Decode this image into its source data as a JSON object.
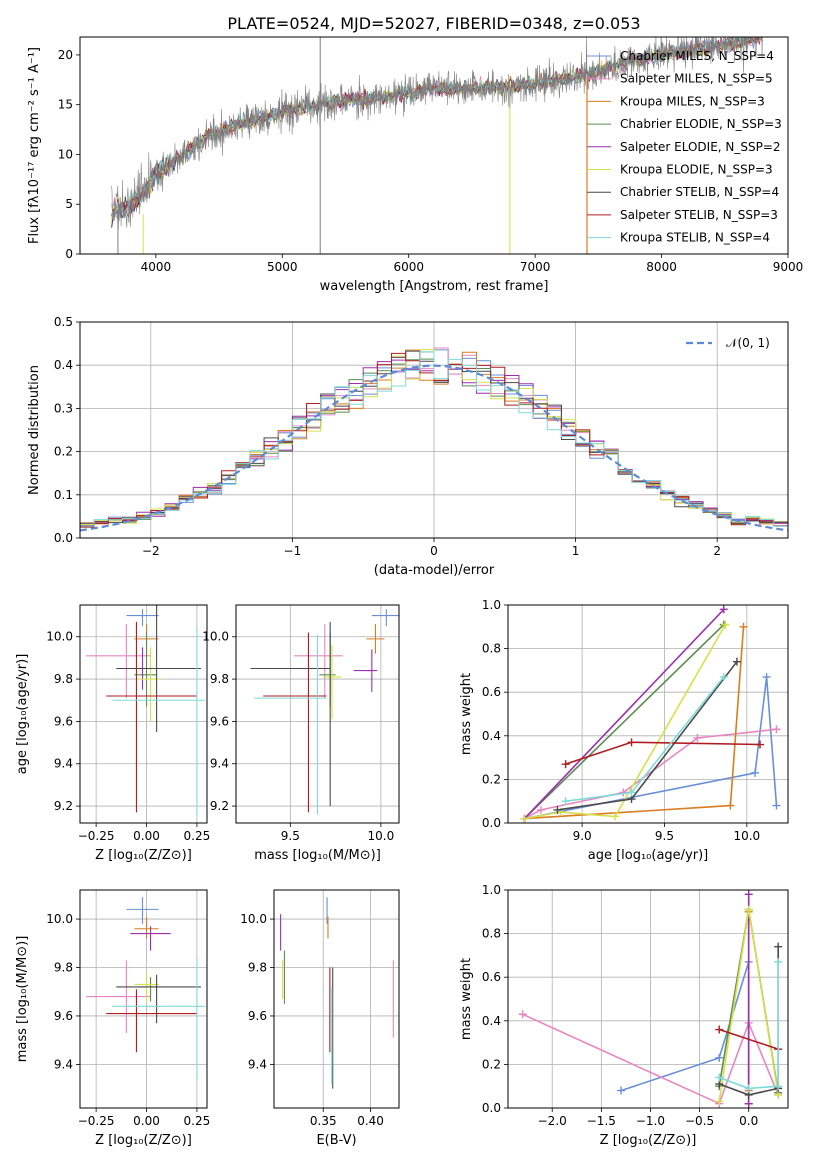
{
  "chart_data": [
    {
      "type": "line",
      "title": "PLATE=0524, MJD=52027, FIBERID=0348, z=0.053",
      "xlabel": "wavelength [Angstrom, rest frame]",
      "ylabel": "Flux [fλ10⁻¹⁷ erg cm⁻² s⁻¹ A⁻¹]",
      "xlim": [
        3400,
        9000
      ],
      "ylim": [
        0,
        21.8
      ],
      "xticks": [
        "4000",
        "5000",
        "6000",
        "7000",
        "8000",
        "9000"
      ],
      "yticks": [
        "0",
        "5",
        "10",
        "15",
        "20"
      ],
      "legend_position": "top-right",
      "data_spectrum": {
        "name": "data",
        "x": [
          3650,
          3800,
          3900,
          4000,
          4200,
          4400,
          4600,
          4800,
          5000,
          5200,
          5400,
          5600,
          5800,
          6000,
          6200,
          6400,
          6600,
          6800,
          7000,
          7200,
          7400,
          7600,
          7800,
          8000,
          8200,
          8400,
          8600,
          8800
        ],
        "y": [
          4.2,
          5.0,
          6.0,
          8.0,
          9.8,
          11.8,
          12.8,
          13.5,
          14.3,
          14.8,
          15.2,
          15.6,
          15.7,
          16.2,
          16.6,
          16.5,
          16.8,
          16.8,
          17.1,
          17.6,
          18.0,
          18.8,
          19.5,
          20.0,
          20.4,
          20.8,
          21.2,
          21.8
        ]
      },
      "series": [
        {
          "name": "Chabrier MILES, N_SSP=4",
          "color": "#6a8fd8"
        },
        {
          "name": "Salpeter MILES, N_SSP=5",
          "color": "#e986c0"
        },
        {
          "name": "Kroupa MILES, N_SSP=3",
          "color": "#d97d20"
        },
        {
          "name": "Chabrier ELODIE, N_SSP=3",
          "color": "#5a8c50"
        },
        {
          "name": "Salpeter ELODIE, N_SSP=2",
          "color": "#9b2fb0"
        },
        {
          "name": "Kroupa ELODIE, N_SSP=3",
          "color": "#d6e04a"
        },
        {
          "name": "Chabrier STELIB, N_SSP=4",
          "color": "#4a4a4a"
        },
        {
          "name": "Salpeter STELIB, N_SSP=3",
          "color": "#b01c20"
        },
        {
          "name": "Kroupa STELIB, N_SSP=4",
          "color": "#7fdad8"
        }
      ]
    },
    {
      "type": "line",
      "xlabel": "(data-model)/error",
      "ylabel": "Normed distribution",
      "xlim": [
        -2.5,
        2.5
      ],
      "ylim": [
        0,
        0.5
      ],
      "xticks": [
        "−2",
        "−1",
        "0",
        "1",
        "2"
      ],
      "yticks": [
        "0.0",
        "0.1",
        "0.2",
        "0.3",
        "0.4",
        "0.5"
      ],
      "grid": true,
      "legend_position": "top-right",
      "legend_label": "𝒩(0, 1)",
      "gaussian": {
        "mean": 0,
        "sigma": 1,
        "color": "#5b8bd6"
      },
      "histogram_bin_width": 0.1
    },
    {
      "type": "scatter",
      "xlabel": "Z [log₁₀(Z/Z⊙)]",
      "ylabel": "age  [log₁₀(age/yr)]",
      "xlim": [
        -0.33,
        0.3
      ],
      "ylim": [
        9.12,
        10.15
      ],
      "xticks": [
        "−0.25",
        "0.00",
        "0.25"
      ],
      "yticks": [
        "9.2",
        "9.4",
        "9.6",
        "9.8",
        "10.0"
      ],
      "grid": true,
      "points": [
        {
          "x": -0.02,
          "y": 10.1,
          "xerr": [
            0.08,
            0.08
          ],
          "yerr": [
            0.05,
            0.03
          ],
          "color": "#6a8fd8"
        },
        {
          "x": -0.1,
          "y": 9.91,
          "xerr": [
            0.2,
            0.12
          ],
          "yerr": [
            0.2,
            0.15
          ],
          "color": "#e986c0"
        },
        {
          "x": 0.0,
          "y": 9.99,
          "xerr": [
            0.06,
            0.06
          ],
          "yerr": [
            0.07,
            0.07
          ],
          "color": "#d97d20"
        },
        {
          "x": 0.0,
          "y": 9.82,
          "xerr": [
            0.06,
            0.05
          ],
          "yerr": [
            0.15,
            0.2
          ],
          "color": "#5a8c50"
        },
        {
          "x": -0.02,
          "y": 9.85,
          "xerr": [
            0.1,
            0.12
          ],
          "yerr": [
            0.1,
            0.1
          ],
          "color": "#9b2fb0"
        },
        {
          "x": 0.02,
          "y": 9.8,
          "xerr": [
            0.06,
            0.05
          ],
          "yerr": [
            0.2,
            0.15
          ],
          "color": "#d6e04a"
        },
        {
          "x": 0.05,
          "y": 9.85,
          "xerr": [
            0.2,
            0.22
          ],
          "yerr": [
            0.3,
            0.3
          ],
          "color": "#4a4a4a"
        },
        {
          "x": -0.05,
          "y": 9.72,
          "xerr": [
            0.15,
            0.3
          ],
          "yerr": [
            0.55,
            0.35
          ],
          "color": "#b01c20"
        },
        {
          "x": 0.25,
          "y": 9.7,
          "xerr": [
            0.42,
            0.04
          ],
          "yerr": [
            0.55,
            0.35
          ],
          "color": "#7fdad8"
        }
      ]
    },
    {
      "type": "scatter",
      "xlabel": "mass [log₁₀(M/M⊙)]",
      "ylabel": "",
      "xlim": [
        9.2,
        10.1
      ],
      "ylim": [
        9.12,
        10.15
      ],
      "xticks": [
        "9.5",
        "10.0"
      ],
      "yticks": [
        "9.2",
        "9.4",
        "9.6",
        "9.8",
        "10.0"
      ],
      "grid": true,
      "points": [
        {
          "x": 10.03,
          "y": 10.1,
          "xerr": [
            0.08,
            0.08
          ],
          "yerr": [
            0.05,
            0.03
          ],
          "color": "#6a8fd8"
        },
        {
          "x": 9.69,
          "y": 9.91,
          "xerr": [
            0.17,
            0.1
          ],
          "yerr": [
            0.2,
            0.15
          ],
          "color": "#e986c0"
        },
        {
          "x": 9.97,
          "y": 9.99,
          "xerr": [
            0.05,
            0.05
          ],
          "yerr": [
            0.07,
            0.07
          ],
          "color": "#d97d20"
        },
        {
          "x": 9.72,
          "y": 9.82,
          "xerr": [
            0.06,
            0.03
          ],
          "yerr": [
            0.15,
            0.2
          ],
          "color": "#5a8c50"
        },
        {
          "x": 9.95,
          "y": 9.84,
          "xerr": [
            0.1,
            0.03
          ],
          "yerr": [
            0.1,
            0.1
          ],
          "color": "#9b2fb0"
        },
        {
          "x": 9.73,
          "y": 9.81,
          "xerr": [
            0.05,
            0.05
          ],
          "yerr": [
            0.2,
            0.15
          ],
          "color": "#d6e04a"
        },
        {
          "x": 9.72,
          "y": 9.85,
          "xerr": [
            0.44,
            0.0
          ],
          "yerr": [
            0.65,
            0.22
          ],
          "color": "#4a4a4a"
        },
        {
          "x": 9.6,
          "y": 9.72,
          "xerr": [
            0.25,
            0.1
          ],
          "yerr": [
            0.55,
            0.3
          ],
          "color": "#b01c20"
        },
        {
          "x": 9.65,
          "y": 9.71,
          "xerr": [
            0.35,
            0.05
          ],
          "yerr": [
            0.55,
            0.3
          ],
          "color": "#7fdad8"
        }
      ]
    },
    {
      "type": "line",
      "xlabel": "age  [log₁₀(age/yr)]",
      "ylabel": "mass weight",
      "xlim": [
        8.55,
        10.25
      ],
      "ylim": [
        0,
        1
      ],
      "xticks": [
        "9.0",
        "9.5",
        "10.0"
      ],
      "yticks": [
        "0.0",
        "0.2",
        "0.4",
        "0.6",
        "0.8",
        "1.0"
      ],
      "grid": true,
      "series": [
        {
          "color": "#6a8fd8",
          "x": [
            8.65,
            10.05,
            10.12,
            10.18
          ],
          "y": [
            0.02,
            0.23,
            0.67,
            0.08
          ]
        },
        {
          "color": "#e986c0",
          "x": [
            8.65,
            8.75,
            9.25,
            9.7,
            10.18
          ],
          "y": [
            0.02,
            0.06,
            0.14,
            0.39,
            0.43
          ]
        },
        {
          "color": "#d97d20",
          "x": [
            8.65,
            9.9,
            9.98
          ],
          "y": [
            0.02,
            0.08,
            0.9
          ]
        },
        {
          "color": "#5a8c50",
          "x": [
            8.65,
            9.86
          ],
          "y": [
            0.02,
            0.91
          ]
        },
        {
          "color": "#9b2fb0",
          "x": [
            8.65,
            9.86
          ],
          "y": [
            0.02,
            0.98
          ]
        },
        {
          "color": "#d6e04a",
          "x": [
            8.65,
            8.87,
            9.2,
            9.87
          ],
          "y": [
            0.02,
            0.05,
            0.03,
            0.91
          ]
        },
        {
          "color": "#4a4a4a",
          "x": [
            8.85,
            9.3,
            9.94
          ],
          "y": [
            0.06,
            0.11,
            0.74
          ]
        },
        {
          "color": "#b01c20",
          "x": [
            8.9,
            9.3,
            10.08
          ],
          "y": [
            0.27,
            0.37,
            0.36
          ]
        },
        {
          "color": "#7fdad8",
          "x": [
            8.9,
            9.3,
            9.86
          ],
          "y": [
            0.1,
            0.14,
            0.67
          ]
        }
      ]
    },
    {
      "type": "scatter",
      "xlabel": "Z [log₁₀(Z/Z⊙)]",
      "ylabel": "mass [log₁₀(M/M⊙)]",
      "xlim": [
        -0.33,
        0.3
      ],
      "ylim": [
        9.22,
        10.12
      ],
      "xticks": [
        "−0.25",
        "0.00",
        "0.25"
      ],
      "yticks": [
        "9.4",
        "9.6",
        "9.8",
        "10.0"
      ],
      "grid": true,
      "points": [
        {
          "x": -0.02,
          "y": 10.04,
          "xerr": [
            0.08,
            0.08
          ],
          "yerr": [
            0.06,
            0.05
          ],
          "color": "#6a8fd8"
        },
        {
          "x": -0.1,
          "y": 9.68,
          "xerr": [
            0.2,
            0.12
          ],
          "yerr": [
            0.15,
            0.15
          ],
          "color": "#e986c0"
        },
        {
          "x": 0.0,
          "y": 9.96,
          "xerr": [
            0.06,
            0.06
          ],
          "yerr": [
            0.04,
            0.05
          ],
          "color": "#d97d20"
        },
        {
          "x": 0.02,
          "y": 9.72,
          "xerr": [
            0.06,
            0.04
          ],
          "yerr": [
            0.06,
            0.04
          ],
          "color": "#5a8c50"
        },
        {
          "x": 0.02,
          "y": 9.94,
          "xerr": [
            0.1,
            0.1
          ],
          "yerr": [
            0.07,
            0.03
          ],
          "color": "#9b2fb0"
        },
        {
          "x": 0.0,
          "y": 9.73,
          "xerr": [
            0.06,
            0.06
          ],
          "yerr": [
            0.08,
            0.05
          ],
          "color": "#d6e04a"
        },
        {
          "x": 0.05,
          "y": 9.72,
          "xerr": [
            0.2,
            0.22
          ],
          "yerr": [
            0.15,
            0.05
          ],
          "color": "#4a4a4a"
        },
        {
          "x": -0.05,
          "y": 9.61,
          "xerr": [
            0.15,
            0.3
          ],
          "yerr": [
            0.16,
            0.1
          ],
          "color": "#b01c20"
        },
        {
          "x": 0.25,
          "y": 9.64,
          "xerr": [
            0.42,
            0.04
          ],
          "yerr": [
            0.3,
            0.2
          ],
          "color": "#7fdad8"
        }
      ]
    },
    {
      "type": "scatter",
      "xlabel": "E(B-V)",
      "ylabel": "",
      "xlim": [
        0.298,
        0.43
      ],
      "ylim": [
        9.22,
        10.12
      ],
      "xticks": [
        "0.35",
        "0.40"
      ],
      "yticks": [
        "9.4",
        "9.6",
        "9.8",
        "10.0"
      ],
      "grid": true,
      "points": [
        {
          "x": 0.354,
          "y": 10.04,
          "yerr": [
            0.06,
            0.05
          ],
          "color": "#6a8fd8"
        },
        {
          "x": 0.424,
          "y": 9.68,
          "yerr": [
            0.17,
            0.15
          ],
          "color": "#e986c0"
        },
        {
          "x": 0.355,
          "y": 9.96,
          "yerr": [
            0.04,
            0.05
          ],
          "color": "#d97d20"
        },
        {
          "x": 0.309,
          "y": 9.77,
          "yerr": [
            0.12,
            0.1
          ],
          "color": "#5a8c50"
        },
        {
          "x": 0.305,
          "y": 9.94,
          "yerr": [
            0.07,
            0.08
          ],
          "color": "#9b2fb0"
        },
        {
          "x": 0.307,
          "y": 9.75,
          "yerr": [
            0.08,
            0.08
          ],
          "color": "#d6e04a"
        },
        {
          "x": 0.36,
          "y": 9.55,
          "yerr": [
            0.25,
            0.25
          ],
          "color": "#4a4a4a"
        },
        {
          "x": 0.357,
          "y": 9.6,
          "yerr": [
            0.15,
            0.2
          ],
          "color": "#b01c20"
        },
        {
          "x": 0.359,
          "y": 9.52,
          "yerr": [
            0.2,
            0.2
          ],
          "color": "#7fdad8"
        }
      ]
    },
    {
      "type": "line",
      "xlabel": "Z [log₁₀(Z/Z⊙)]",
      "ylabel": "mass weight",
      "xlim": [
        -2.45,
        0.4
      ],
      "ylim": [
        0,
        1
      ],
      "xticks": [
        "−2.0",
        "−1.5",
        "−1.0",
        "−0.5",
        "0.0"
      ],
      "yticks": [
        "0.0",
        "0.2",
        "0.4",
        "0.6",
        "0.8",
        "1.0"
      ],
      "grid": true,
      "series": [
        {
          "color": "#6a8fd8",
          "x": [
            -1.3,
            -0.3,
            0.0,
            0.0
          ],
          "y": [
            0.08,
            0.23,
            0.67,
            0.02
          ]
        },
        {
          "color": "#e986c0",
          "x": [
            -2.3,
            -0.3,
            0.0,
            0.3
          ],
          "y": [
            0.43,
            0.02,
            0.39,
            0.06
          ]
        },
        {
          "color": "#d97d20",
          "x": [
            0.0,
            0.0,
            0.0
          ],
          "y": [
            0.02,
            0.08,
            0.9
          ]
        },
        {
          "color": "#5a8c50",
          "x": [
            -0.3,
            0.0,
            0.3
          ],
          "y": [
            0.1,
            0.91,
            0.07
          ]
        },
        {
          "color": "#9b2fb0",
          "x": [
            0.0,
            0.0
          ],
          "y": [
            0.98,
            0.02
          ]
        },
        {
          "color": "#d6e04a",
          "x": [
            -0.3,
            0.0,
            0.3
          ],
          "y": [
            0.03,
            0.91,
            0.06
          ]
        },
        {
          "color": "#4a4a4a",
          "x": [
            -0.3,
            0.0,
            0.3,
            0.3
          ],
          "y": [
            0.11,
            0.06,
            0.09,
            0.74
          ]
        },
        {
          "color": "#b01c20",
          "x": [
            -0.3,
            0.3
          ],
          "y": [
            0.36,
            0.27
          ]
        },
        {
          "color": "#7fdad8",
          "x": [
            -0.3,
            0.0,
            0.3,
            0.3
          ],
          "y": [
            0.14,
            0.09,
            0.1,
            0.67
          ]
        }
      ]
    }
  ]
}
